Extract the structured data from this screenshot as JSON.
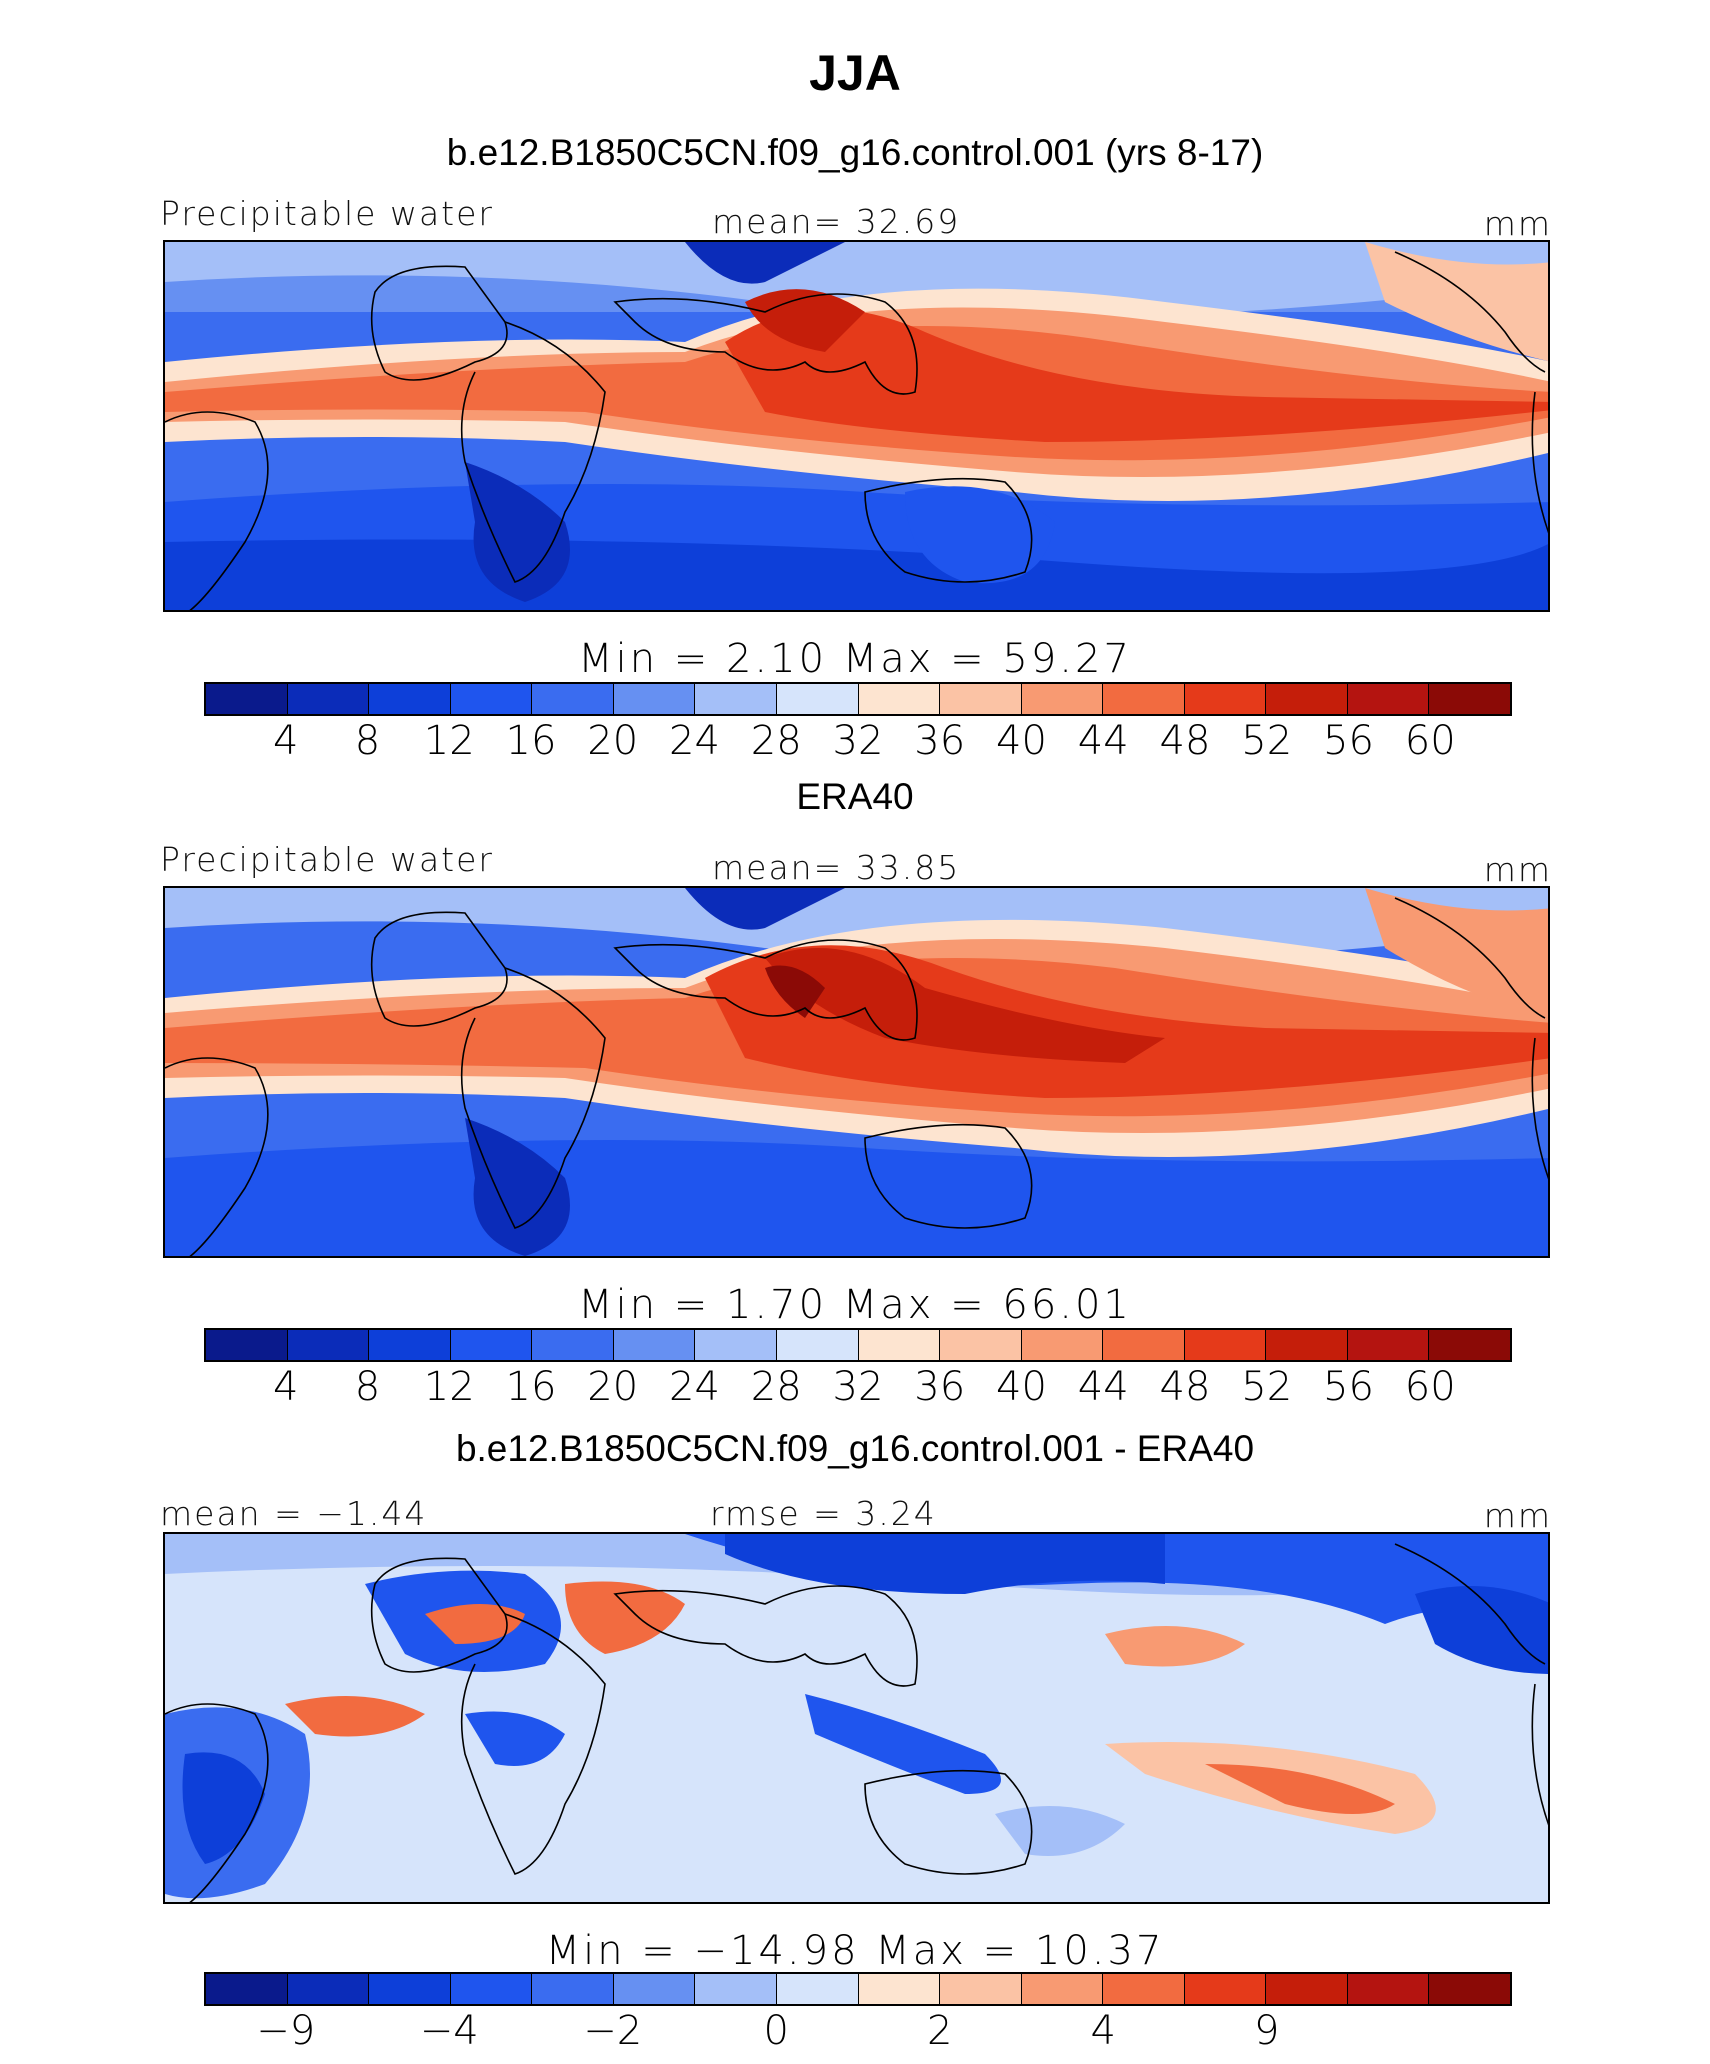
{
  "title": "JJA",
  "colors": [
    "#0a1a8c",
    "#0b2cb9",
    "#0d3fd9",
    "#1f55ee",
    "#3a6cf0",
    "#6690f2",
    "#a4bff8",
    "#d6e4fb",
    "#fde4d0",
    "#fbc3a5",
    "#f89a72",
    "#f26b40",
    "#e53a1a",
    "#c51e0a",
    "#b41410",
    "#8b0a06"
  ],
  "panels": [
    {
      "subtitle": "b.e12.B1850C5CN.f09_g16.control.001 (yrs 8-17)",
      "left_label": "Precipitable water",
      "center_label": "mean=   32.69",
      "right_label": "mm",
      "stats": "Min  =    2.10  Max  =    59.27",
      "ticks": [
        "4",
        "8",
        "12",
        "16",
        "20",
        "24",
        "28",
        "32",
        "36",
        "40",
        "44",
        "48",
        "52",
        "56",
        "60"
      ]
    },
    {
      "subtitle": "ERA40",
      "left_label": "Precipitable water",
      "center_label": "mean=   33.85",
      "right_label": "mm",
      "stats": "Min  =    1.70  Max  =    66.01",
      "ticks": [
        "4",
        "8",
        "12",
        "16",
        "20",
        "24",
        "28",
        "32",
        "36",
        "40",
        "44",
        "48",
        "52",
        "56",
        "60"
      ]
    },
    {
      "subtitle": "b.e12.B1850C5CN.f09_g16.control.001 - ERA40",
      "left_label": "mean =  −1.44",
      "center_label": "rmse =    3.24",
      "right_label": "mm",
      "stats": "Min  = −14.98  Max  =    10.37",
      "ticks": [
        "−9",
        "",
        "−4",
        "",
        "−2",
        "",
        "0",
        "",
        "2",
        "",
        "4",
        "",
        "9",
        "",
        ""
      ]
    }
  ]
}
